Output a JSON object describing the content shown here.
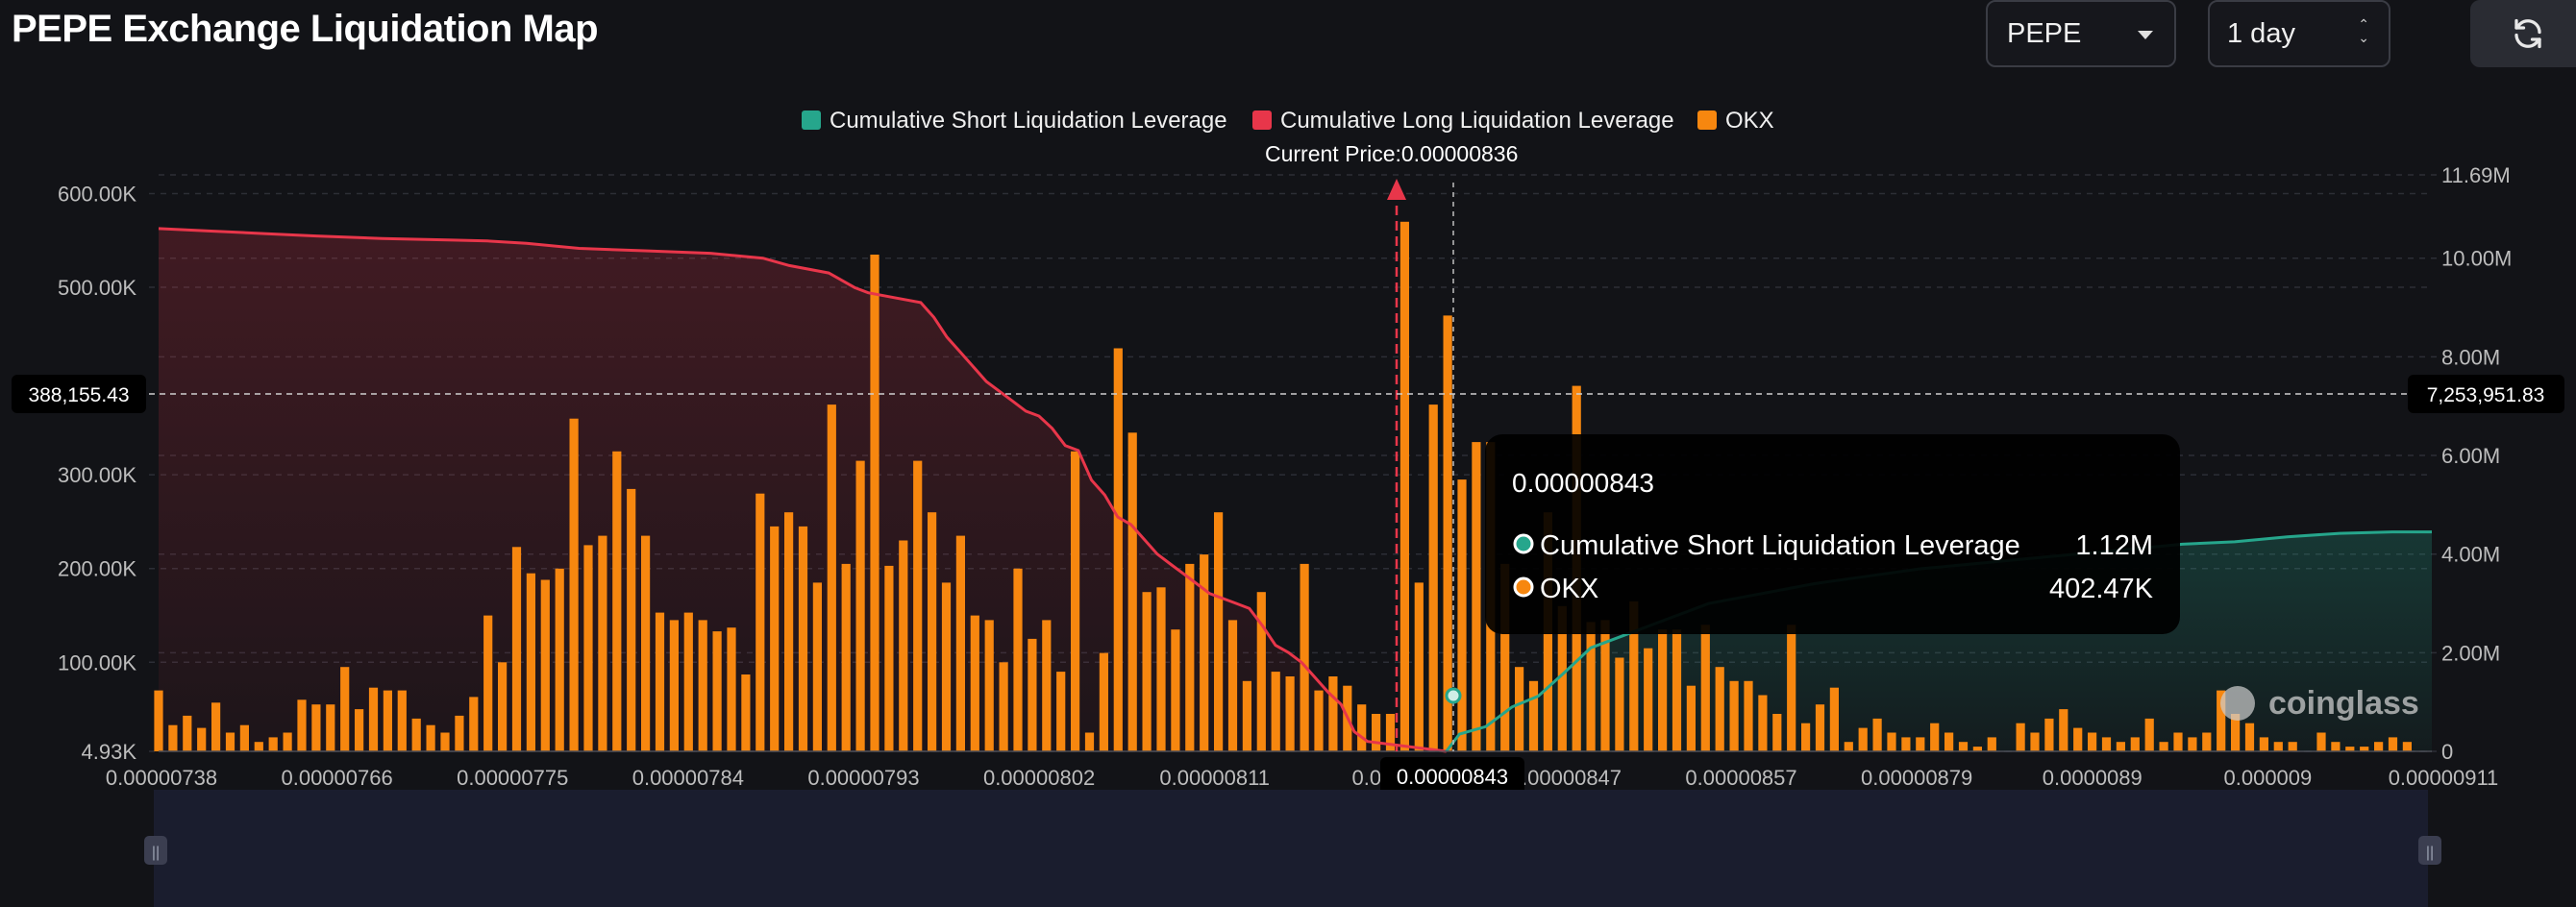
{
  "page": {
    "title": "PEPE Exchange Liquidation Map"
  },
  "controls": {
    "coin": "PEPE",
    "period": "1 day",
    "refresh_icon": "refresh-icon"
  },
  "chart_data": {
    "type": "bar",
    "legend": [
      {
        "name": "Cumulative Short Liquidation Leverage",
        "color": "#26a68c"
      },
      {
        "name": "Cumulative Long Liquidation Leverage",
        "color": "#e8364a"
      },
      {
        "name": "OKX",
        "color": "#f7870f"
      }
    ],
    "current_price_label": "Current Price:0.00000836",
    "current_price": 8.36e-06,
    "x_tick_labels": [
      "0.00000738",
      "0.00000766",
      "0.00000775",
      "0.00000784",
      "0.00000793",
      "0.00000802",
      "0.00000811",
      "0.00000",
      "0.00000847",
      "0.00000857",
      "0.00000879",
      "0.0000089",
      "0.000009",
      "0.00000911"
    ],
    "x_range": [
      7.38e-06,
      9.11e-06
    ],
    "left_axis": {
      "ticks": [
        "4.93K",
        "100.00K",
        "200.00K",
        "300.00K",
        "500.00K",
        "600.00K"
      ],
      "min": 4930,
      "max": 620000
    },
    "right_axis": {
      "ticks": [
        "0",
        "2.00M",
        "4.00M",
        "6.00M",
        "8.00M",
        "10.00M",
        "11.69M"
      ],
      "min": 0,
      "max": 11690000
    },
    "crosshair": {
      "x_label": "0.00000843",
      "left_label": "388,155.43",
      "right_label": "7,253,951.83"
    },
    "okx_bars_k": [
      65,
      28,
      38,
      25,
      52,
      20,
      28,
      10,
      15,
      20,
      55,
      50,
      50,
      90,
      45,
      68,
      65,
      65,
      35,
      28,
      20,
      38,
      58,
      145,
      95,
      218,
      190,
      183,
      195,
      355,
      220,
      230,
      320,
      280,
      230,
      148,
      140,
      148,
      140,
      128,
      132,
      82,
      275,
      240,
      255,
      240,
      180,
      370,
      200,
      310,
      530,
      198,
      225,
      310,
      255,
      180,
      230,
      145,
      140,
      95,
      195,
      120,
      140,
      85,
      320,
      20,
      105,
      430,
      340,
      170,
      175,
      130,
      200,
      210,
      255,
      140,
      75,
      170,
      85,
      80,
      200,
      65,
      80,
      70,
      50,
      40,
      40,
      565,
      180,
      370,
      465,
      290,
      330,
      330,
      200,
      90,
      75,
      255,
      155,
      390,
      138,
      140,
      100,
      160,
      110,
      130,
      130,
      70,
      135,
      90,
      75,
      75,
      60,
      40,
      135,
      30,
      50,
      68,
      10,
      25,
      35,
      20,
      15,
      15,
      30,
      20,
      10,
      5,
      15,
      0,
      30,
      20,
      35,
      45,
      25,
      20,
      15,
      10,
      15,
      35,
      10,
      20,
      15,
      20,
      65,
      40,
      30,
      15,
      10,
      10,
      0,
      20,
      10,
      5,
      5,
      10,
      15,
      10
    ],
    "okx_bar_start": 7.38e-06,
    "okx_bar_step": 1.09e-08,
    "long_cumulative_m": [
      10.6,
      10.55,
      10.5,
      10.45,
      10.4,
      10.37,
      10.35,
      10.3,
      10.2,
      10.15,
      10.1,
      10.0,
      9.85,
      9.7,
      9.55,
      9.4,
      9.3,
      9.2,
      9.1,
      8.8,
      8.4,
      8.1,
      7.8,
      7.5,
      7.3,
      7.1,
      6.9,
      6.8,
      6.55,
      6.2,
      6.1,
      5.5,
      5.2,
      4.75,
      4.6,
      4.3,
      4.0,
      3.8,
      3.6,
      3.4,
      3.2,
      3.1,
      3.0,
      2.9,
      2.55,
      2.15,
      2.0,
      1.8,
      1.5,
      1.2,
      0.95,
      0.4,
      0.2,
      0.0
    ],
    "long_cumulative_x": [
      7.38e-06,
      7.42e-06,
      7.46e-06,
      7.5e-06,
      7.55e-06,
      7.6e-06,
      7.63e-06,
      7.66e-06,
      7.7e-06,
      7.75e-06,
      7.8e-06,
      7.84e-06,
      7.86e-06,
      7.89e-06,
      7.9e-06,
      7.91e-06,
      7.92e-06,
      7.94e-06,
      7.96e-06,
      7.97e-06,
      7.98e-06,
      7.99e-06,
      8e-06,
      8.01e-06,
      8.02e-06,
      8.03e-06,
      8.04e-06,
      8.05e-06,
      8.06e-06,
      8.07e-06,
      8.08e-06,
      8.09e-06,
      8.1e-06,
      8.11e-06,
      8.12e-06,
      8.13e-06,
      8.14e-06,
      8.15e-06,
      8.16e-06,
      8.17e-06,
      8.18e-06,
      8.19e-06,
      8.2e-06,
      8.21e-06,
      8.22e-06,
      8.23e-06,
      8.24e-06,
      8.25e-06,
      8.26e-06,
      8.27e-06,
      8.28e-06,
      8.29e-06,
      8.3e-06,
      8.36e-06
    ],
    "short_cumulative_m": [
      0.0,
      0.35,
      0.5,
      0.7,
      0.9,
      1.12,
      1.6,
      2.1,
      2.4,
      2.7,
      3.0,
      3.2,
      3.4,
      3.55,
      3.7,
      3.8,
      3.9,
      4.0,
      4.1,
      4.2,
      4.25,
      4.35,
      4.42,
      4.45,
      4.45
    ],
    "short_cumulative_x": [
      8.36e-06,
      8.37e-06,
      8.39e-06,
      8.4e-06,
      8.41e-06,
      8.43e-06,
      8.45e-06,
      8.47e-06,
      8.5e-06,
      8.53e-06,
      8.56e-06,
      8.6e-06,
      8.64e-06,
      8.68e-06,
      8.72e-06,
      8.76e-06,
      8.8e-06,
      8.84e-06,
      8.88e-06,
      8.92e-06,
      8.96e-06,
      9e-06,
      9.04e-06,
      9.08e-06,
      9.11e-06
    ],
    "tooltip": {
      "title": "0.00000843",
      "rows": [
        {
          "label": "Cumulative Short Liquidation Leverage",
          "value": "1.12M",
          "color": "#26a68c"
        },
        {
          "label": "OKX",
          "value": "402.47K",
          "color": "#f7870f"
        }
      ]
    },
    "watermark": "coinglass"
  }
}
